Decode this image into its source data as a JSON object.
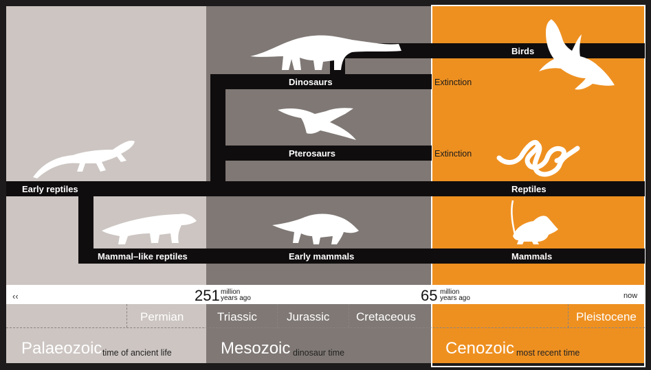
{
  "colors": {
    "palaeozoic": "#ccc5c2",
    "mesozoic": "#7f7875",
    "cenozoic": "#ee9020",
    "branch": "#100d0e"
  },
  "lineages": {
    "early_reptiles": "Early reptiles",
    "dinosaurs": "Dinosaurs",
    "pterosaurs": "Pterosaurs",
    "mammal_like_reptiles": "Mammal–like reptiles",
    "early_mammals": "Early mammals",
    "birds": "Birds",
    "reptiles": "Reptiles",
    "mammals": "Mammals"
  },
  "events": {
    "dinosaur_extinction": "Extinction",
    "pterosaur_extinction": "Extinction"
  },
  "timeline": {
    "back_arrow": "‹‹",
    "mark_251_value": "251",
    "mark_251_unit_1": "million",
    "mark_251_unit_2": "years ago",
    "mark_65_value": "65",
    "mark_65_unit_1": "million",
    "mark_65_unit_2": "years ago",
    "now": "now"
  },
  "periods": {
    "permian": "Permian",
    "triassic": "Triassic",
    "jurassic": "Jurassic",
    "cretaceous": "Cretaceous",
    "pleistocene": "Pleistocene"
  },
  "eras": {
    "palaeozoic": {
      "name": "Palaeozoic",
      "desc": "time of ancient life"
    },
    "mesozoic": {
      "name": "Mesozoic",
      "desc": "dinosaur time"
    },
    "cenozoic": {
      "name": "Cenozoic",
      "desc": "most recent time"
    }
  },
  "silhouettes": {
    "early_reptile": "lizard-silhouette",
    "dinosaur": "sauropod-silhouette",
    "pterosaur": "pterosaur-silhouette",
    "mammal_like_reptile": "synapsid-silhouette",
    "early_mammal": "early-mammal-silhouette",
    "bird": "bird-silhouette",
    "snake": "snake-silhouette",
    "mouse": "mouse-silhouette"
  }
}
